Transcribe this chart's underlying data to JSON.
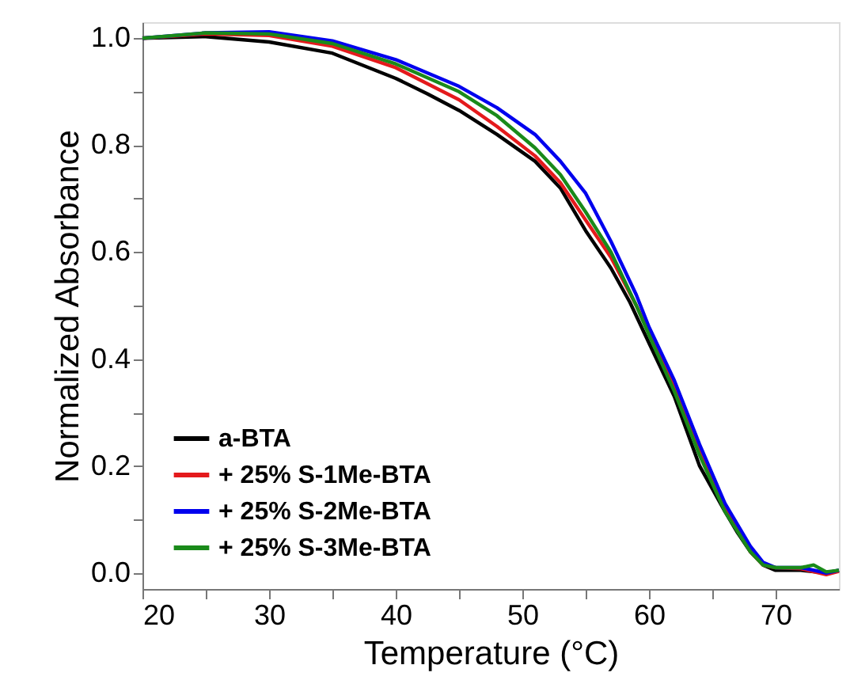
{
  "chart_data": {
    "type": "line",
    "xlabel": "Temperature (°C)",
    "ylabel": "Normalized Absorbance",
    "xlim": [
      20,
      75
    ],
    "ylim": [
      -0.03,
      1.03
    ],
    "xticks": [
      20,
      {
        "value": 25,
        "label": null
      },
      30,
      {
        "value": 35,
        "label": null
      },
      40,
      {
        "value": 45,
        "label": null
      },
      50,
      {
        "value": 55,
        "label": null
      },
      60,
      {
        "value": 65,
        "label": null
      },
      70
    ],
    "yticks": [
      "0.0",
      {
        "value": 0.1,
        "label": null
      },
      0.2,
      {
        "value": 0.3,
        "label": null
      },
      0.4,
      {
        "value": 0.5,
        "label": null
      },
      0.6,
      {
        "value": 0.7,
        "label": null
      },
      0.8,
      {
        "value": 0.9,
        "label": null
      },
      "1.0"
    ],
    "grid": false,
    "legend": "bottom left",
    "line_style": "solid",
    "marker": "none",
    "series": [
      {
        "name": "a-BTA",
        "color": "#000000",
        "x": [
          20,
          25,
          30,
          35,
          40,
          42.5,
          45,
          48,
          51,
          53,
          55,
          57,
          58.5,
          60,
          62,
          64,
          66,
          67,
          68,
          69,
          70,
          72,
          74,
          75
        ],
        "values": [
          1.0,
          1.003,
          0.993,
          0.972,
          0.925,
          0.896,
          0.865,
          0.82,
          0.77,
          0.72,
          0.64,
          0.57,
          0.506,
          0.43,
          0.33,
          0.2,
          0.115,
          0.075,
          0.04,
          0.015,
          0.005,
          0.005,
          0.0,
          0.005
        ]
      },
      {
        "name": "+ 25% S-1Me-BTA",
        "color": "#e41a1c",
        "x": [
          20,
          25,
          30,
          35,
          40,
          45,
          48,
          51,
          53,
          55,
          57,
          59,
          60,
          62,
          64,
          66,
          68,
          69,
          70,
          72,
          74,
          75
        ],
        "values": [
          1.0,
          1.008,
          1.005,
          0.985,
          0.945,
          0.885,
          0.835,
          0.78,
          0.73,
          0.66,
          0.59,
          0.5,
          0.45,
          0.35,
          0.23,
          0.125,
          0.04,
          0.015,
          0.01,
          0.008,
          -0.003,
          0.003
        ]
      },
      {
        "name": "+ 25% S-2Me-BTA",
        "color": "#0000ee",
        "x": [
          20,
          25,
          30,
          35,
          40,
          45,
          48,
          51,
          53,
          55,
          57,
          59,
          60,
          62,
          64,
          66,
          68,
          69,
          70,
          72,
          74,
          75
        ],
        "values": [
          1.0,
          1.01,
          1.012,
          0.995,
          0.96,
          0.91,
          0.87,
          0.82,
          0.77,
          0.71,
          0.62,
          0.52,
          0.46,
          0.36,
          0.24,
          0.13,
          0.05,
          0.02,
          0.01,
          0.01,
          0.0,
          0.005
        ]
      },
      {
        "name": "+ 25% S-3Me-BTA",
        "color": "#1a8a1a",
        "x": [
          20,
          25,
          30,
          35,
          40,
          45,
          48,
          51,
          53,
          55,
          57,
          59,
          60,
          62,
          64,
          66,
          68,
          69,
          70,
          72,
          73,
          74,
          75
        ],
        "values": [
          1.0,
          1.01,
          1.008,
          0.99,
          0.952,
          0.9,
          0.855,
          0.795,
          0.745,
          0.675,
          0.6,
          0.5,
          0.445,
          0.34,
          0.22,
          0.115,
          0.04,
          0.015,
          0.01,
          0.01,
          0.015,
          0.002,
          0.005
        ]
      }
    ]
  }
}
